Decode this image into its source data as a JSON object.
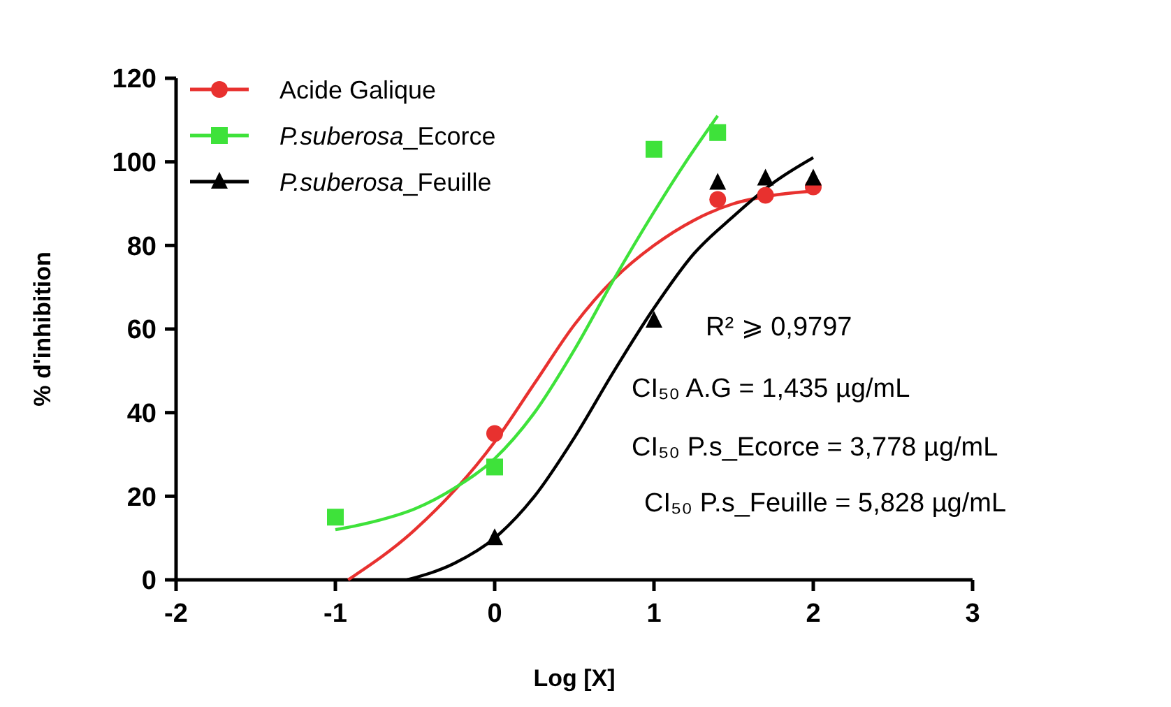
{
  "chart_data": {
    "type": "scatter",
    "xlabel": "Log [X]",
    "ylabel": "% d'inhibition",
    "xlim": [
      -2,
      3
    ],
    "xticks": [
      -2,
      -1,
      0,
      1,
      2,
      3
    ],
    "ylim": [
      0,
      120
    ],
    "yticks": [
      0,
      20,
      40,
      60,
      80,
      100,
      120
    ],
    "legend": "top left",
    "grid": false,
    "series": [
      {
        "name": "Acide Galique",
        "color": "#e8312f",
        "marker": "circle",
        "x": [
          0,
          1.4,
          1.7,
          2
        ],
        "values": [
          35,
          91,
          92,
          94
        ]
      },
      {
        "name": "P.suberosa_Ecorce",
        "color": "#3ee23a",
        "marker": "square",
        "x": [
          -1,
          0,
          1,
          1.4
        ],
        "values": [
          15,
          27,
          103,
          107
        ]
      },
      {
        "name": "P.suberosa_Feuille",
        "color": "#000000",
        "marker": "triangle",
        "x": [
          0,
          1,
          1.4,
          1.7,
          2
        ],
        "values": [
          10,
          62,
          95,
          96,
          96
        ]
      },
      {
        "type": "line",
        "color": "#e8312f",
        "marker": "none",
        "x": [
          -0.92,
          -0.5,
          0,
          0.25,
          0.5,
          0.75,
          1,
          1.25,
          1.5,
          1.75,
          2
        ],
        "values": [
          0,
          12,
          33,
          47,
          61,
          72,
          80,
          86,
          90,
          92,
          93
        ]
      },
      {
        "type": "line",
        "color": "#3ee23a",
        "marker": "none",
        "x": [
          -1,
          -0.75,
          -0.5,
          -0.25,
          0,
          0.25,
          0.5,
          0.75,
          1,
          1.2,
          1.4
        ],
        "values": [
          12,
          14,
          17,
          22,
          29,
          40,
          55,
          72,
          88,
          100,
          111
        ]
      },
      {
        "type": "line",
        "color": "#000000",
        "marker": "none",
        "x": [
          -0.55,
          -0.25,
          0,
          0.25,
          0.5,
          0.75,
          1,
          1.25,
          1.5,
          1.75,
          2
        ],
        "values": [
          0,
          4,
          10,
          20,
          34,
          50,
          65,
          78,
          87,
          95,
          101
        ]
      }
    ],
    "annotations": [
      "R² ⩾ 0,9797",
      "CI₅₀ A.G = 1,435 µg/mL",
      "CI₅₀ P.s_Ecorce = 3,778 µg/mL",
      "CI₅₀ P.s_Feuille = 5,828 µg/mL"
    ]
  }
}
